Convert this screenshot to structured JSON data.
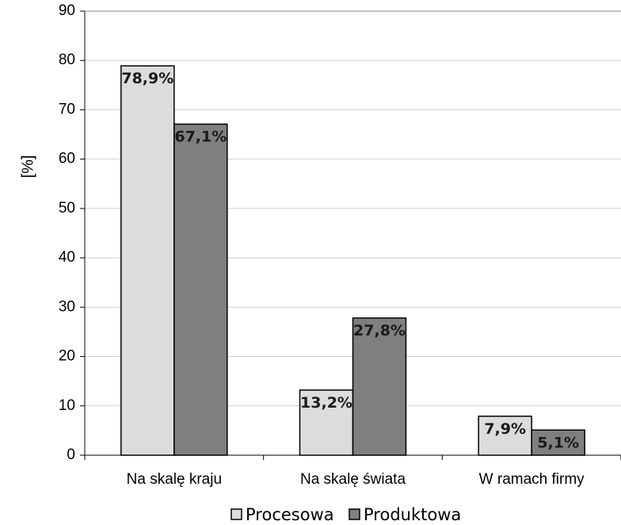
{
  "chart_data": {
    "type": "bar",
    "categories": [
      "Na skalę kraju",
      "Na skalę świata",
      "W ramach firmy"
    ],
    "series": [
      {
        "name": "Procesowa",
        "values": [
          78.9,
          13.2,
          7.9
        ],
        "labels": [
          "78,9%",
          "13,2%",
          "7,9%"
        ],
        "color": "#dcdcdc"
      },
      {
        "name": "Produktowa",
        "values": [
          67.1,
          27.8,
          5.1
        ],
        "labels": [
          "67,1%",
          "27,8%",
          "5,1%"
        ],
        "color": "#7f7f7f"
      }
    ],
    "ylabel": "[%]",
    "xlabel": "",
    "ylim": [
      0,
      90
    ],
    "yticks": [
      "0",
      "10",
      "20",
      "30",
      "40",
      "50",
      "60",
      "70",
      "80",
      "90"
    ],
    "grid": true,
    "legend_position": "bottom"
  }
}
